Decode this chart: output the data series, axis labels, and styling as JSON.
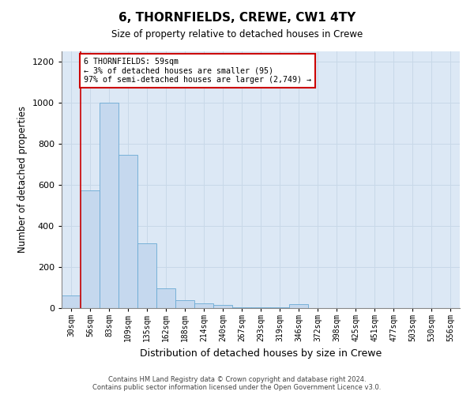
{
  "title": "6, THORNFIELDS, CREWE, CW1 4TY",
  "subtitle": "Size of property relative to detached houses in Crewe",
  "xlabel": "Distribution of detached houses by size in Crewe",
  "ylabel": "Number of detached properties",
  "footer_line1": "Contains HM Land Registry data © Crown copyright and database right 2024.",
  "footer_line2": "Contains public sector information licensed under the Open Government Licence v3.0.",
  "bar_color": "#c5d8ee",
  "bar_edge_color": "#6aaad4",
  "grid_color": "#c8d8e8",
  "background_color": "#ffffff",
  "plot_bg_color": "#dce8f5",
  "annotation_box_color": "#cc0000",
  "vline_color": "#cc0000",
  "bin_labels": [
    "30sqm",
    "56sqm",
    "83sqm",
    "109sqm",
    "135sqm",
    "162sqm",
    "188sqm",
    "214sqm",
    "240sqm",
    "267sqm",
    "293sqm",
    "319sqm",
    "346sqm",
    "372sqm",
    "398sqm",
    "425sqm",
    "451sqm",
    "477sqm",
    "503sqm",
    "530sqm",
    "556sqm"
  ],
  "bar_heights": [
    60,
    575,
    1000,
    745,
    315,
    95,
    38,
    25,
    15,
    5,
    5,
    5,
    20,
    0,
    0,
    0,
    0,
    0,
    0,
    0,
    0
  ],
  "ylim": [
    0,
    1250
  ],
  "yticks": [
    0,
    200,
    400,
    600,
    800,
    1000,
    1200
  ],
  "annotation_text": "6 THORNFIELDS: 59sqm\n← 3% of detached houses are smaller (95)\n97% of semi-detached houses are larger (2,749) →",
  "vline_x": 0.5
}
